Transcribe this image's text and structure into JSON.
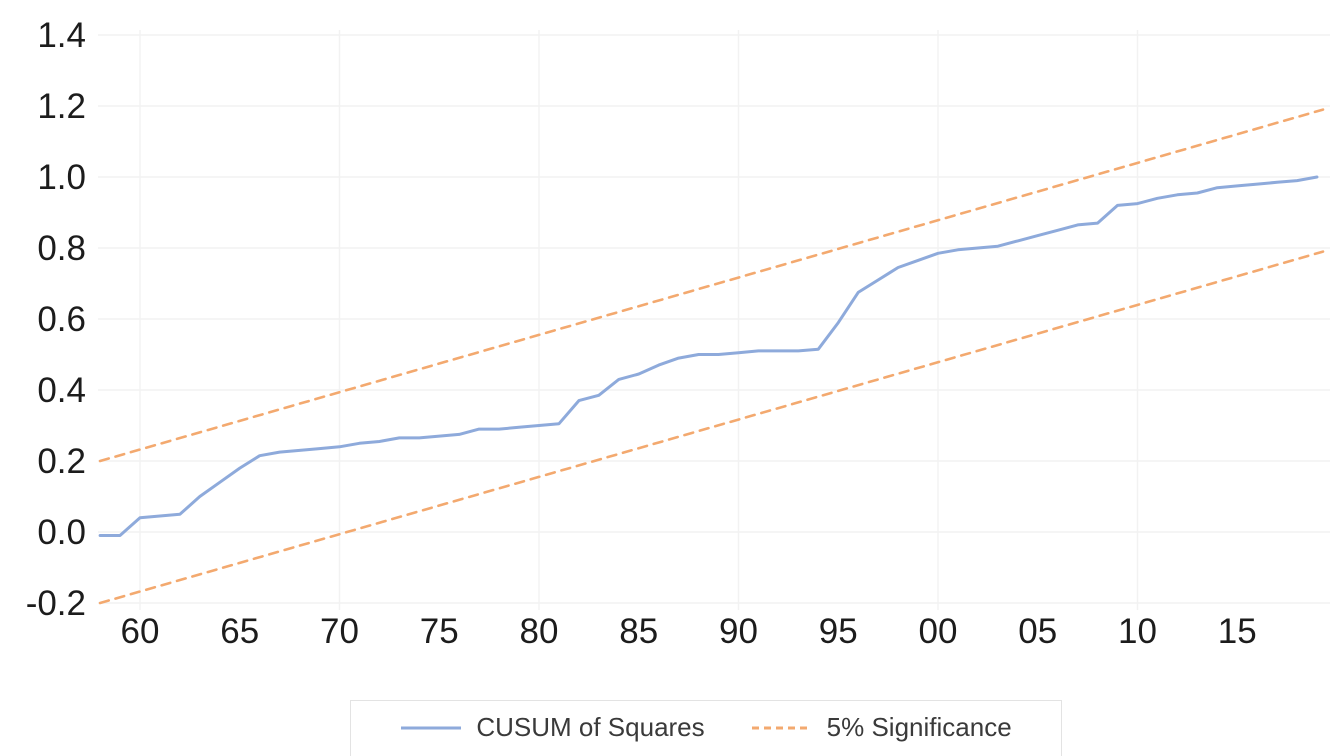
{
  "chart_data": {
    "type": "line",
    "title": "",
    "xlabel": "",
    "ylabel": "",
    "xlim": [
      1958,
      2019.3
    ],
    "ylim": [
      -0.2,
      1.4
    ],
    "x_ticks": [
      1960,
      1965,
      1970,
      1975,
      1980,
      1985,
      1990,
      1995,
      2000,
      2005,
      2010,
      2015
    ],
    "x_tick_labels": [
      "60",
      "65",
      "70",
      "75",
      "80",
      "85",
      "90",
      "95",
      "00",
      "05",
      "10",
      "15"
    ],
    "y_ticks": [
      -0.2,
      0.0,
      0.2,
      0.4,
      0.6,
      0.8,
      1.0,
      1.2,
      1.4
    ],
    "y_tick_labels": [
      "-0.2",
      "0.0",
      "0.2",
      "0.4",
      "0.6",
      "0.8",
      "1.0",
      "1.2",
      "1.4"
    ],
    "grid": {
      "horizontal_at_y_ticks": true,
      "vertical_at_years": [
        1960,
        1970,
        1980,
        1990,
        2000,
        2010
      ]
    },
    "legend_position": "bottom-center",
    "series": [
      {
        "name": "CUSUM of Squares",
        "type": "solid-line",
        "color": "#8eaadb",
        "x": [
          1958,
          1959,
          1960,
          1961,
          1962,
          1963,
          1964,
          1965,
          1966,
          1967,
          1968,
          1969,
          1970,
          1971,
          1972,
          1973,
          1974,
          1975,
          1976,
          1977,
          1978,
          1979,
          1980,
          1981,
          1982,
          1983,
          1984,
          1985,
          1986,
          1987,
          1988,
          1989,
          1990,
          1991,
          1992,
          1993,
          1994,
          1995,
          1996,
          1997,
          1998,
          1999,
          2000,
          2001,
          2002,
          2003,
          2004,
          2005,
          2006,
          2007,
          2008,
          2009,
          2010,
          2011,
          2012,
          2013,
          2014,
          2015,
          2016,
          2017,
          2018,
          2019
        ],
        "values": [
          -0.01,
          -0.01,
          0.04,
          0.045,
          0.05,
          0.1,
          0.14,
          0.18,
          0.215,
          0.225,
          0.23,
          0.235,
          0.24,
          0.25,
          0.255,
          0.265,
          0.265,
          0.27,
          0.275,
          0.29,
          0.29,
          0.295,
          0.3,
          0.305,
          0.37,
          0.385,
          0.43,
          0.445,
          0.47,
          0.49,
          0.5,
          0.5,
          0.505,
          0.51,
          0.51,
          0.51,
          0.515,
          0.59,
          0.675,
          0.71,
          0.745,
          0.765,
          0.785,
          0.795,
          0.8,
          0.805,
          0.82,
          0.835,
          0.85,
          0.865,
          0.87,
          0.92,
          0.925,
          0.94,
          0.95,
          0.955,
          0.97,
          0.975,
          0.98,
          0.985,
          0.99,
          1.0
        ]
      },
      {
        "name": "5% Significance (upper band)",
        "type": "dashed-line",
        "color": "#f3a96f",
        "x": [
          1958,
          2019.3
        ],
        "values": [
          0.2,
          1.19
        ]
      },
      {
        "name": "5% Significance (lower band)",
        "type": "dashed-line",
        "color": "#f3a96f",
        "x": [
          1958,
          2019.3
        ],
        "values": [
          -0.2,
          0.79
        ]
      }
    ]
  },
  "legend": {
    "items": [
      {
        "label": "CUSUM of Squares",
        "swatch": "solid-blue-line"
      },
      {
        "label": "5% Significance",
        "swatch": "dashed-orange-line"
      }
    ]
  },
  "colors": {
    "cusum_line": "#8eaadb",
    "significance_line": "#f3a96f",
    "tick_text": "#1c1c1c",
    "legend_text": "#3a3a3a",
    "gridline": "#f2f2f2",
    "legend_border": "#e3e3e3",
    "background": "#ffffff"
  }
}
